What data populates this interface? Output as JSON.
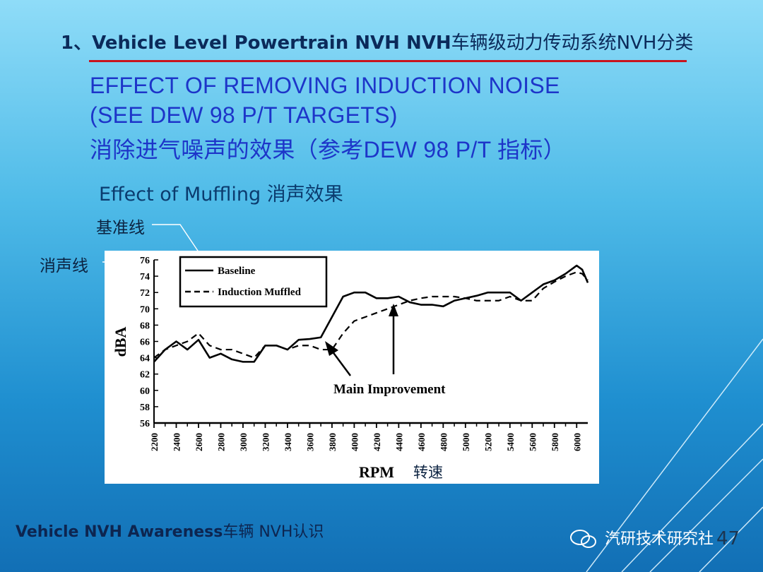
{
  "slide": {
    "title_en": "1、Vehicle Level Powertrain NVH  NVH",
    "title_cn": "车辆级动力传动系统NVH分类",
    "heading_lines": [
      "EFFECT OF REMOVING INDUCTION NOISE",
      "(SEE DEW 98 P/T TARGETS)",
      "消除进气噪声的效果（参考DEW 98 P/T 指标）"
    ],
    "subtitle": "Effect of Muffling 消声效果",
    "callout_baseline": "基准线",
    "callout_muffled": "消声线",
    "rpm_cn": "转速",
    "footer_en": "Vehicle NVH Awareness",
    "footer_cn": "车辆 NVH认识",
    "brand": "汽研技术研究社",
    "page_number": "47",
    "colors": {
      "title": "#0b2a5a",
      "rule": "#c8141e",
      "heading": "#1d35c9",
      "background_top": "#8fdcf8",
      "background_bottom": "#126fb5"
    },
    "icons": [
      "wechat-icon",
      "arrow-icon"
    ]
  },
  "chart_data": {
    "type": "line",
    "xlabel": "RPM",
    "ylabel": "dBA",
    "xlim": [
      2200,
      6100
    ],
    "ylim": [
      56,
      76
    ],
    "x_ticks": [
      2200,
      2400,
      2600,
      2800,
      3000,
      3200,
      3400,
      3600,
      3800,
      4000,
      4200,
      4400,
      4600,
      4800,
      5000,
      5200,
      5400,
      5600,
      5800,
      6000
    ],
    "y_ticks": [
      56,
      58,
      60,
      62,
      64,
      66,
      68,
      70,
      72,
      74,
      76
    ],
    "legend_position": "top-left",
    "grid": false,
    "annotation": "Main Improvement",
    "series": [
      {
        "name": "Baseline",
        "style": "solid",
        "x": [
          2200,
          2300,
          2400,
          2500,
          2600,
          2700,
          2800,
          2900,
          3000,
          3100,
          3200,
          3300,
          3400,
          3500,
          3600,
          3700,
          3800,
          3900,
          4000,
          4100,
          4200,
          4300,
          4400,
          4500,
          4600,
          4700,
          4800,
          4900,
          5000,
          5100,
          5200,
          5300,
          5400,
          5500,
          5600,
          5700,
          5800,
          5900,
          6000,
          6050,
          6100
        ],
        "y": [
          63.5,
          65.0,
          66.0,
          65.0,
          66.2,
          64.0,
          64.5,
          63.8,
          63.5,
          63.5,
          65.5,
          65.5,
          65.0,
          66.2,
          66.3,
          66.5,
          69.0,
          71.5,
          72.0,
          72.0,
          71.3,
          71.3,
          71.5,
          70.8,
          70.5,
          70.5,
          70.3,
          71.0,
          71.3,
          71.6,
          72.0,
          72.0,
          72.0,
          71.0,
          72.0,
          73.0,
          73.5,
          74.3,
          75.3,
          74.8,
          73.2
        ]
      },
      {
        "name": "Induction Muffled",
        "style": "dashed",
        "x": [
          2200,
          2300,
          2400,
          2500,
          2600,
          2700,
          2800,
          2900,
          3000,
          3100,
          3200,
          3300,
          3400,
          3500,
          3600,
          3700,
          3800,
          3900,
          4000,
          4100,
          4200,
          4300,
          4400,
          4500,
          4600,
          4700,
          4800,
          4900,
          5000,
          5100,
          5200,
          5300,
          5400,
          5500,
          5600,
          5700,
          5800,
          5900,
          6000,
          6050,
          6100
        ],
        "y": [
          64.0,
          65.0,
          65.5,
          66.0,
          67.0,
          65.5,
          65.0,
          65.0,
          64.5,
          64.0,
          65.5,
          65.5,
          65.0,
          65.5,
          65.5,
          65.0,
          65.0,
          67.0,
          68.5,
          69.0,
          69.5,
          70.0,
          70.5,
          71.0,
          71.3,
          71.5,
          71.5,
          71.5,
          71.3,
          71.0,
          71.0,
          71.0,
          71.5,
          71.0,
          71.0,
          72.5,
          73.3,
          74.0,
          74.5,
          74.3,
          73.5
        ]
      }
    ]
  }
}
